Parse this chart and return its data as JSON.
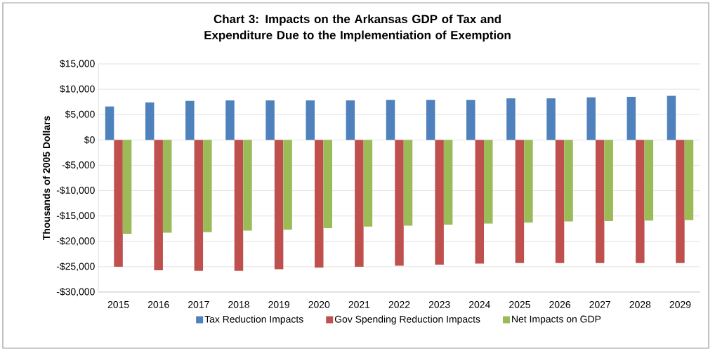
{
  "chart_data": {
    "type": "bar",
    "title": "Chart 3: Impacts on the Arkansas GDP of Tax and Expenditure Due to the Implementiation of Exemption",
    "ylabel": "Thousands of 2005 Dollars",
    "categories": [
      "2015",
      "2016",
      "2017",
      "2018",
      "2019",
      "2020",
      "2021",
      "2022",
      "2023",
      "2024",
      "2025",
      "2026",
      "2027",
      "2028",
      "2029"
    ],
    "series": [
      {
        "name": "Tax Reduction Impacts",
        "color": "#4f81bd",
        "values": [
          6600,
          7400,
          7700,
          7800,
          7800,
          7800,
          7800,
          7900,
          7900,
          7900,
          8200,
          8200,
          8400,
          8500,
          8700
        ]
      },
      {
        "name": "Gov Spending Reduction Impacts",
        "color": "#c0504d",
        "values": [
          -25000,
          -25700,
          -25800,
          -25800,
          -25500,
          -25200,
          -25000,
          -24800,
          -24600,
          -24400,
          -24300,
          -24300,
          -24300,
          -24300,
          -24300
        ]
      },
      {
        "name": "Net Impacts on GDP",
        "color": "#9bbb59",
        "values": [
          -18500,
          -18300,
          -18200,
          -17900,
          -17700,
          -17400,
          -17100,
          -16900,
          -16700,
          -16500,
          -16300,
          -16100,
          -16000,
          -15900,
          -15800
        ]
      }
    ],
    "ylim": [
      -30000,
      15000
    ],
    "yticks": [
      {
        "value": -30000,
        "label": "-$30,000"
      },
      {
        "value": -25000,
        "label": "-$25,000"
      },
      {
        "value": -20000,
        "label": "-$20,000"
      },
      {
        "value": -15000,
        "label": "-$15,000"
      },
      {
        "value": -10000,
        "label": "-$10,000"
      },
      {
        "value": -5000,
        "label": "-$5,000"
      },
      {
        "value": 0,
        "label": "$0"
      },
      {
        "value": 5000,
        "label": "$5,000"
      },
      {
        "value": 10000,
        "label": "$10,000"
      },
      {
        "value": 15000,
        "label": "$15,000"
      }
    ],
    "grid": "y",
    "legend": "bottom"
  }
}
